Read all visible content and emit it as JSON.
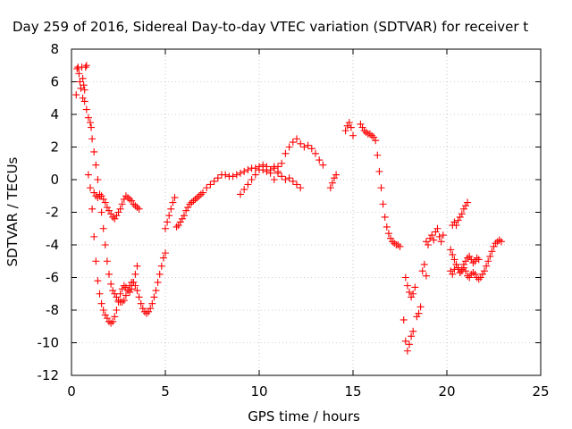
{
  "chart_data": {
    "type": "scatter",
    "title": "Day 259 of 2016, Sidereal Day-to-day VTEC variation (SDTVAR) for receiver t",
    "xlabel": "GPS time / hours",
    "ylabel": "SDTVAR / TECUs",
    "xlim": [
      0,
      25
    ],
    "ylim": [
      -12,
      8
    ],
    "xticks": [
      0,
      5,
      10,
      15,
      20,
      25
    ],
    "yticks": [
      -12,
      -10,
      -8,
      -6,
      -4,
      -2,
      0,
      2,
      4,
      6,
      8
    ],
    "xtick_labels": [
      "0",
      "5",
      "10",
      "15",
      "20",
      "25"
    ],
    "ytick_labels": [
      "-12",
      "-10",
      "-8",
      "-6",
      "-4",
      "-2",
      "0",
      "2",
      "4",
      "6",
      "8"
    ],
    "grid": true,
    "marker": "+",
    "color": "#ff0000",
    "series": [
      {
        "x": [
          0.25,
          0.3,
          0.35,
          0.4,
          0.45,
          0.5,
          0.55,
          0.6,
          0.65,
          0.7,
          0.75,
          0.8
        ],
        "y": [
          5.2,
          6.8,
          6.9,
          6.5,
          6.0,
          5.6,
          6.9,
          6.2,
          5.8,
          5.5,
          6.9,
          7.0
        ]
      },
      {
        "x": [
          0.6,
          0.7,
          0.8,
          0.9,
          1.0,
          1.05,
          1.1,
          1.2,
          1.3,
          1.4,
          1.5,
          1.6,
          1.7,
          1.8,
          1.9,
          2.0,
          2.1,
          2.2,
          2.3,
          2.4,
          2.5,
          2.6,
          2.7,
          2.8,
          2.9,
          3.0,
          3.1,
          3.2,
          3.3,
          3.4,
          3.5,
          3.6,
          3.7,
          3.8,
          3.9,
          4.0,
          4.1,
          4.2,
          4.3,
          4.4,
          4.5,
          4.6,
          4.7,
          4.8,
          4.9,
          5.0
        ],
        "y": [
          5.0,
          4.8,
          4.3,
          3.8,
          3.5,
          3.2,
          2.5,
          1.7,
          0.9,
          0.0,
          -1.0,
          -2.0,
          -3.0,
          -4.0,
          -5.0,
          -5.8,
          -6.4,
          -6.8,
          -7.0,
          -7.2,
          -7.4,
          -7.5,
          -7.5,
          -7.4,
          -7.1,
          -6.8,
          -6.5,
          -6.3,
          -6.3,
          -6.5,
          -6.8,
          -7.2,
          -7.6,
          -7.9,
          -8.1,
          -8.2,
          -8.1,
          -7.9,
          -7.6,
          -7.2,
          -6.8,
          -6.3,
          -5.8,
          -5.3,
          -4.8,
          -4.5
        ]
      },
      {
        "x": [
          0.9,
          1.0,
          1.1,
          1.2,
          1.3,
          1.4,
          1.5,
          1.6,
          1.7,
          1.8,
          1.9,
          2.0,
          2.1,
          2.2,
          2.3,
          2.4,
          2.5,
          2.6,
          2.7,
          2.8,
          2.9,
          3.0,
          3.1,
          3.2,
          3.3,
          3.4,
          3.5
        ],
        "y": [
          0.3,
          -0.5,
          -1.8,
          -3.5,
          -5.0,
          -6.2,
          -7.0,
          -7.6,
          -8.0,
          -8.3,
          -8.5,
          -8.7,
          -8.8,
          -8.7,
          -8.4,
          -8.0,
          -7.5,
          -7.0,
          -6.7,
          -6.5,
          -6.6,
          -6.8,
          -6.9,
          -6.7,
          -6.3,
          -5.8,
          -5.3
        ]
      },
      {
        "x": [
          1.2,
          1.3,
          1.4,
          1.5,
          1.6,
          1.7,
          1.8,
          1.9,
          2.0,
          2.1,
          2.2,
          2.3,
          2.4,
          2.5,
          2.6,
          2.7,
          2.8,
          2.9,
          3.0,
          3.1,
          3.2,
          3.3,
          3.4,
          3.5,
          3.6
        ],
        "y": [
          -0.8,
          -1.0,
          -1.1,
          -0.9,
          -1.0,
          -1.2,
          -1.4,
          -1.7,
          -1.9,
          -2.1,
          -2.3,
          -2.4,
          -2.2,
          -2.0,
          -1.8,
          -1.5,
          -1.2,
          -1.0,
          -1.1,
          -1.2,
          -1.3,
          -1.5,
          -1.6,
          -1.7,
          -1.8
        ]
      },
      {
        "x": [
          5.0,
          5.1,
          5.2,
          5.3,
          5.4,
          5.5,
          5.6,
          5.7,
          5.8,
          5.9,
          6.0,
          6.1,
          6.2,
          6.3,
          6.4,
          6.5,
          6.6,
          6.7,
          6.8,
          6.9,
          7.0,
          7.2,
          7.4,
          7.6,
          7.8,
          8.0,
          8.2,
          8.4,
          8.6,
          8.8,
          9.0,
          9.2,
          9.4,
          9.6,
          9.8,
          10.0,
          10.2,
          10.4,
          10.6,
          10.8,
          11.0
        ],
        "y": [
          -3.0,
          -2.6,
          -2.2,
          -1.8,
          -1.4,
          -1.1,
          -2.9,
          -2.8,
          -2.6,
          -2.4,
          -2.2,
          -1.9,
          -1.7,
          -1.5,
          -1.4,
          -1.3,
          -1.2,
          -1.1,
          -1.0,
          -0.9,
          -0.8,
          -0.5,
          -0.3,
          -0.1,
          0.1,
          0.3,
          0.3,
          0.2,
          0.2,
          0.3,
          0.4,
          0.5,
          0.6,
          0.7,
          0.7,
          0.8,
          0.6,
          0.5,
          0.6,
          0.7,
          0.8
        ]
      },
      {
        "x": [
          9.0,
          9.2,
          9.4,
          9.6,
          9.8,
          10.0,
          10.2,
          10.4,
          10.6,
          10.8,
          11.0,
          11.2,
          11.4,
          11.6,
          11.8,
          12.0,
          12.2,
          12.4,
          12.6,
          12.8,
          13.0,
          13.2,
          13.4
        ],
        "y": [
          -0.9,
          -0.6,
          -0.3,
          0.0,
          0.3,
          0.6,
          0.9,
          0.8,
          0.4,
          0.0,
          0.4,
          1.0,
          1.6,
          2.0,
          2.3,
          2.5,
          2.2,
          2.0,
          2.1,
          1.9,
          1.6,
          1.2,
          0.9
        ]
      },
      {
        "x": [
          10.8,
          11.0,
          11.2,
          11.4,
          11.6,
          11.8,
          12.0,
          12.2
        ],
        "y": [
          0.8,
          0.5,
          0.2,
          0.0,
          0.1,
          -0.1,
          -0.3,
          -0.5
        ]
      },
      {
        "x": [
          13.8,
          13.9,
          14.0,
          14.1
        ],
        "y": [
          -0.5,
          -0.2,
          0.1,
          0.3
        ]
      },
      {
        "x": [
          14.6,
          14.7,
          14.8,
          14.9,
          15.0
        ],
        "y": [
          3.0,
          3.3,
          3.5,
          3.2,
          2.7
        ]
      },
      {
        "x": [
          15.4,
          15.5,
          15.6,
          15.7,
          15.8,
          15.9,
          16.0,
          16.1,
          16.2,
          16.3,
          16.4,
          16.5,
          16.6,
          16.7,
          16.8,
          16.9,
          17.0,
          17.1,
          17.2,
          17.3,
          17.4,
          17.5
        ],
        "y": [
          3.4,
          3.2,
          3.0,
          2.9,
          2.8,
          2.8,
          2.7,
          2.6,
          2.4,
          1.5,
          0.5,
          -0.5,
          -1.5,
          -2.3,
          -2.9,
          -3.3,
          -3.6,
          -3.8,
          -3.9,
          -4.0,
          -4.0,
          -4.1
        ]
      },
      {
        "x": [
          17.8,
          17.9,
          18.0,
          18.1,
          18.2,
          18.3
        ],
        "y": [
          -6.0,
          -6.5,
          -6.9,
          -7.2,
          -7.0,
          -6.6
        ]
      },
      {
        "x": [
          17.7,
          17.8,
          17.9,
          18.0,
          18.1,
          18.2
        ],
        "y": [
          -8.6,
          -9.9,
          -10.5,
          -10.1,
          -9.6,
          -9.3
        ]
      },
      {
        "x": [
          18.4,
          18.5,
          18.6,
          18.7,
          18.8,
          18.9
        ],
        "y": [
          -8.4,
          -8.2,
          -7.8,
          -5.6,
          -5.2,
          -5.9
        ]
      },
      {
        "x": [
          18.9,
          19.0,
          19.1,
          19.2,
          19.3,
          19.4,
          19.5,
          19.6,
          19.7,
          19.8
        ],
        "y": [
          -3.8,
          -4.0,
          -3.6,
          -3.4,
          -3.7,
          -3.2,
          -3.0,
          -3.5,
          -3.8,
          -3.4
        ]
      },
      {
        "x": [
          20.2,
          20.3,
          20.4,
          20.5,
          20.6,
          20.7,
          20.8,
          20.9,
          21.0,
          21.1,
          21.2,
          21.3,
          21.4,
          21.5,
          21.6,
          21.7,
          21.8,
          21.9,
          22.0,
          22.1,
          22.2,
          22.3,
          22.4,
          22.5,
          22.6,
          22.7,
          22.8,
          22.9
        ],
        "y": [
          -4.3,
          -4.6,
          -4.9,
          -5.2,
          -5.5,
          -5.7,
          -5.6,
          -5.4,
          -5.6,
          -5.9,
          -6.0,
          -5.8,
          -5.7,
          -5.8,
          -6.0,
          -6.1,
          -6.0,
          -5.8,
          -5.6,
          -5.3,
          -5.0,
          -4.7,
          -4.4,
          -4.1,
          -3.9,
          -3.8,
          -3.7,
          -3.8
        ]
      },
      {
        "x": [
          20.2,
          20.3,
          20.4,
          20.5,
          20.6,
          20.7,
          20.8,
          20.9,
          21.0,
          21.1,
          21.2,
          21.3,
          21.4,
          21.5,
          21.6,
          21.7
        ],
        "y": [
          -5.6,
          -5.8,
          -5.5,
          -5.2,
          -5.4,
          -5.7,
          -5.5,
          -5.2,
          -5.0,
          -4.8,
          -4.7,
          -4.9,
          -5.1,
          -5.0,
          -4.8,
          -4.9
        ]
      },
      {
        "x": [
          20.3,
          20.4,
          20.5,
          20.6,
          20.7,
          20.8,
          20.9,
          21.0,
          21.1
        ],
        "y": [
          -2.8,
          -2.6,
          -2.8,
          -2.5,
          -2.3,
          -2.1,
          -1.8,
          -1.6,
          -1.4
        ]
      }
    ]
  }
}
